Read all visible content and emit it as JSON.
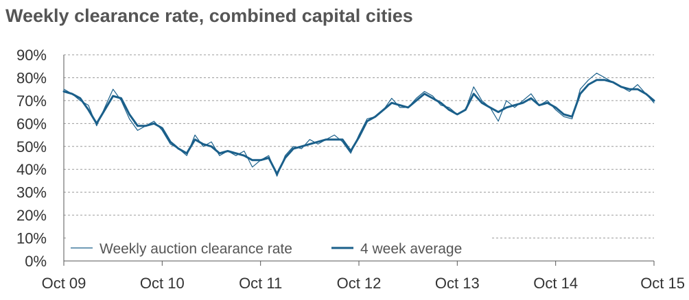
{
  "chart_data": {
    "type": "line",
    "title": "Weekly clearance rate, combined capital cities",
    "xlabel": "",
    "ylabel": "",
    "x_ticks": [
      "Oct 09",
      "Oct 10",
      "Oct 11",
      "Oct 12",
      "Oct 13",
      "Oct 14",
      "Oct 15"
    ],
    "y_ticks": [
      "0%",
      "10%",
      "20%",
      "30%",
      "40%",
      "50%",
      "60%",
      "70%",
      "80%",
      "90%"
    ],
    "xlim": [
      "2009-10",
      "2015-10"
    ],
    "ylim": [
      0,
      90
    ],
    "y_unit": "%",
    "grid": "horizontal dashed",
    "legend_position": "bottom-left",
    "x_dates": [
      "2009-10",
      "2009-11",
      "2009-12",
      "2010-01",
      "2010-02",
      "2010-03",
      "2010-04",
      "2010-05",
      "2010-06",
      "2010-07",
      "2010-08",
      "2010-09",
      "2010-10",
      "2010-11",
      "2010-12",
      "2011-01",
      "2011-02",
      "2011-03",
      "2011-04",
      "2011-05",
      "2011-06",
      "2011-07",
      "2011-08",
      "2011-09",
      "2011-10",
      "2011-11",
      "2011-12",
      "2012-01",
      "2012-02",
      "2012-03",
      "2012-04",
      "2012-05",
      "2012-06",
      "2012-07",
      "2012-08",
      "2012-09",
      "2012-10",
      "2012-11",
      "2012-12",
      "2013-01",
      "2013-02",
      "2013-03",
      "2013-04",
      "2013-05",
      "2013-06",
      "2013-07",
      "2013-08",
      "2013-09",
      "2013-10",
      "2013-11",
      "2013-12",
      "2014-01",
      "2014-02",
      "2014-03",
      "2014-04",
      "2014-05",
      "2014-06",
      "2014-07",
      "2014-08",
      "2014-09",
      "2014-10",
      "2014-11",
      "2014-12",
      "2015-01",
      "2015-02",
      "2015-03",
      "2015-04",
      "2015-05",
      "2015-06",
      "2015-07",
      "2015-08",
      "2015-09",
      "2015-10"
    ],
    "series": [
      {
        "name": "Weekly auction clearance rate",
        "color": "#1a5f8a",
        "stroke": "thin",
        "values": [
          75,
          73,
          70,
          68,
          59,
          67,
          75,
          70,
          62,
          57,
          59,
          61,
          57,
          51,
          49,
          46,
          55,
          50,
          52,
          46,
          48,
          46,
          48,
          41,
          44,
          46,
          37,
          46,
          50,
          49,
          53,
          51,
          53,
          55,
          52,
          47,
          55,
          62,
          63,
          66,
          71,
          67,
          67,
          71,
          74,
          72,
          68,
          67,
          64,
          66,
          76,
          70,
          67,
          61,
          70,
          67,
          70,
          73,
          68,
          70,
          66,
          63,
          62,
          75,
          79,
          82,
          80,
          78,
          76,
          74,
          77,
          73,
          69
        ]
      },
      {
        "name": "4 week average",
        "color": "#1a5f8a",
        "stroke": "thick",
        "values": [
          74,
          73,
          71,
          66,
          60,
          66,
          72,
          71,
          64,
          59,
          59,
          60,
          58,
          52,
          49,
          47,
          53,
          51,
          50,
          47,
          48,
          47,
          46,
          44,
          44,
          45,
          38,
          45,
          49,
          50,
          51,
          52,
          53,
          53,
          53,
          48,
          54,
          61,
          63,
          66,
          69,
          68,
          67,
          70,
          73,
          71,
          69,
          66,
          64,
          66,
          73,
          69,
          67,
          65,
          67,
          68,
          69,
          71,
          68,
          69,
          67,
          64,
          63,
          73,
          77,
          79,
          79,
          78,
          76,
          75,
          75,
          73,
          70
        ]
      }
    ]
  }
}
